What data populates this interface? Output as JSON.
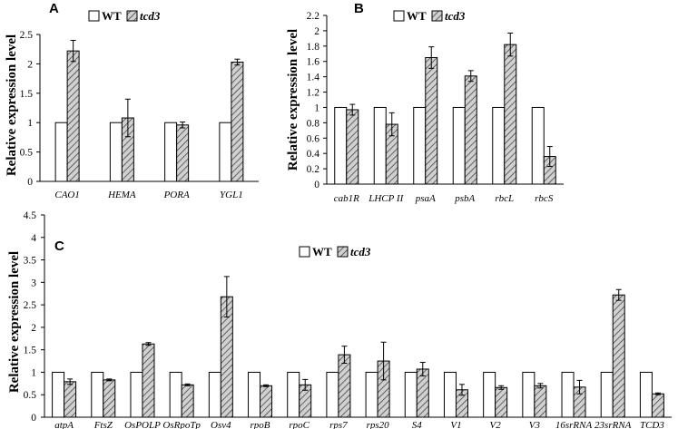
{
  "colors": {
    "wt_fill": "#ffffff",
    "bar_stroke": "#000000",
    "hatch_bg": "#d0d0d0",
    "hatch_line": "#333333"
  },
  "chart_data": [
    {
      "type": "bar",
      "panel_label": "A",
      "title": "",
      "xlabel": "",
      "ylabel": "Relative expression level",
      "ylim": [
        0,
        2.5
      ],
      "yticks": [
        "0",
        "0.5",
        "1",
        "1.5",
        "2",
        "2.5"
      ],
      "categories": [
        "CAO1",
        "HEMA",
        "PORA",
        "YGL1"
      ],
      "legend_placement": "top",
      "series": [
        {
          "name": "WT",
          "values": [
            1,
            1,
            1,
            1
          ],
          "errors": [
            0,
            0,
            0,
            0
          ]
        },
        {
          "name": "tcd3",
          "values": [
            2.22,
            1.08,
            0.96,
            2.03
          ],
          "errors": [
            0.18,
            0.32,
            0.05,
            0.05
          ]
        }
      ]
    },
    {
      "type": "bar",
      "panel_label": "B",
      "title": "",
      "xlabel": "",
      "ylabel": "Relative expression level",
      "ylim": [
        0,
        2.2
      ],
      "yticks": [
        "0",
        "0.2",
        "0.4",
        "0.6",
        "0.8",
        "1",
        "1.2",
        "1.4",
        "1.6",
        "1.8",
        "2",
        "2.2"
      ],
      "categories": [
        "cab1R",
        "LHCP II",
        "psaA",
        "psbA",
        "rbcL",
        "rbcS"
      ],
      "legend_placement": "top",
      "series": [
        {
          "name": "WT",
          "values": [
            1,
            1,
            1,
            1,
            1,
            1
          ],
          "errors": [
            0,
            0,
            0,
            0,
            0,
            0
          ]
        },
        {
          "name": "tcd3",
          "values": [
            0.97,
            0.78,
            1.65,
            1.41,
            1.82,
            0.36
          ],
          "errors": [
            0.07,
            0.15,
            0.14,
            0.07,
            0.15,
            0.13
          ]
        }
      ]
    },
    {
      "type": "bar",
      "panel_label": "C",
      "title": "",
      "xlabel": "",
      "ylabel": "Relative expression level",
      "ylim": [
        0,
        4.5
      ],
      "yticks": [
        "0",
        "0.5",
        "1",
        "1.5",
        "2",
        "2.5",
        "3",
        "3.5",
        "4",
        "4.5"
      ],
      "categories": [
        "atpA",
        "FtsZ",
        "OsPOLP",
        "OsRpoTp",
        "Osv4",
        "rpoB",
        "rpoC",
        "rps7",
        "rps20",
        "S4",
        "V1",
        "V2",
        "V3",
        "16srRNA",
        "23srRNA",
        "TCD3"
      ],
      "legend_placement": "top",
      "series": [
        {
          "name": "WT",
          "values": [
            1,
            1,
            1,
            1,
            1,
            1,
            1,
            1,
            1,
            1,
            1,
            1,
            1,
            1,
            1,
            1
          ],
          "errors": [
            0,
            0,
            0,
            0,
            0,
            0,
            0,
            0,
            0,
            0,
            0,
            0,
            0,
            0,
            0,
            0
          ]
        },
        {
          "name": "tcd3",
          "values": [
            0.79,
            0.83,
            1.63,
            0.72,
            2.68,
            0.7,
            0.72,
            1.39,
            1.25,
            1.07,
            0.61,
            0.66,
            0.7,
            0.67,
            2.72,
            0.52
          ],
          "errors": [
            0.06,
            0.02,
            0.03,
            0.02,
            0.45,
            0.02,
            0.12,
            0.19,
            0.42,
            0.15,
            0.12,
            0.04,
            0.05,
            0.15,
            0.12,
            0.02
          ]
        }
      ]
    }
  ]
}
